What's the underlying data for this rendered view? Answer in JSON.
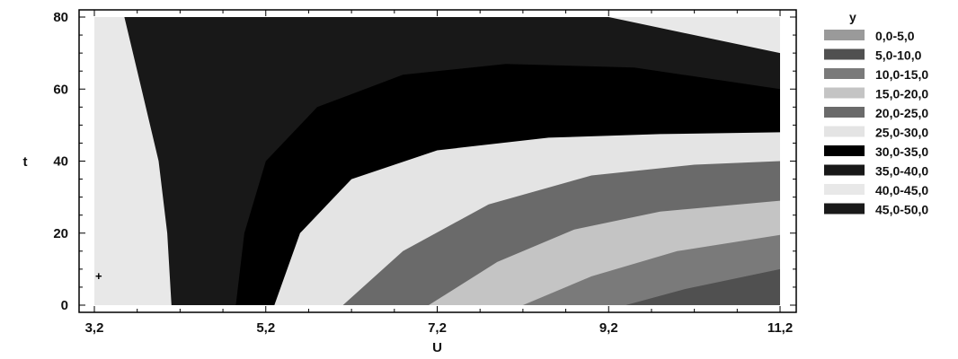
{
  "chart_data": {
    "type": "contour",
    "xlabel": "U",
    "ylabel": "t",
    "xlim": [
      3.2,
      11.2
    ],
    "ylim": [
      0,
      80
    ],
    "x_ticks": [
      "3,2",
      "5,2",
      "7,2",
      "9,2",
      "11,2"
    ],
    "y_ticks": [
      "0",
      "20",
      "40",
      "60",
      "80"
    ],
    "legend_title": "y",
    "legend_position": "right",
    "levels": [
      {
        "label": "0,0-5,0",
        "min": 0,
        "max": 5,
        "color": "#9a9a9a"
      },
      {
        "label": "5,0-10,0",
        "min": 5,
        "max": 10,
        "color": "#505050"
      },
      {
        "label": "10,0-15,0",
        "min": 10,
        "max": 15,
        "color": "#7a7a7a"
      },
      {
        "label": "15,0-20,0",
        "min": 15,
        "max": 20,
        "color": "#c4c4c4"
      },
      {
        "label": "20,0-25,0",
        "min": 20,
        "max": 25,
        "color": "#6a6a6a"
      },
      {
        "label": "25,0-30,0",
        "min": 25,
        "max": 30,
        "color": "#e4e4e4"
      },
      {
        "label": "30,0-35,0",
        "min": 30,
        "max": 35,
        "color": "#000000"
      },
      {
        "label": "35,0-40,0",
        "min": 35,
        "max": 40,
        "color": "#181818"
      },
      {
        "label": "40,0-45,0",
        "min": 40,
        "max": 45,
        "color": "#e8e8e8"
      },
      {
        "label": "45,0-50,0",
        "min": 45,
        "max": 50,
        "color": "#1a1a1a"
      }
    ],
    "regions": [
      {
        "level": "40,0-45,0",
        "points": [
          [
            3.2,
            0
          ],
          [
            11.2,
            0
          ],
          [
            11.2,
            80
          ],
          [
            3.2,
            80
          ]
        ]
      },
      {
        "level": "35,0-40,0",
        "points": [
          [
            3.55,
            80
          ],
          [
            3.75,
            60
          ],
          [
            3.95,
            40
          ],
          [
            4.05,
            20
          ],
          [
            4.1,
            0
          ],
          [
            11.2,
            0
          ],
          [
            11.2,
            70
          ],
          [
            10.0,
            76
          ],
          [
            9.2,
            80
          ]
        ]
      },
      {
        "level": "30,0-35,0",
        "points": [
          [
            4.85,
            0
          ],
          [
            4.95,
            20
          ],
          [
            5.2,
            40
          ],
          [
            5.8,
            55
          ],
          [
            6.8,
            64
          ],
          [
            8.0,
            67
          ],
          [
            9.5,
            66
          ],
          [
            11.2,
            60
          ],
          [
            11.2,
            0
          ]
        ]
      },
      {
        "level": "25,0-30,0",
        "points": [
          [
            5.3,
            0
          ],
          [
            5.6,
            20
          ],
          [
            6.2,
            35
          ],
          [
            7.2,
            43
          ],
          [
            8.5,
            46.5
          ],
          [
            9.8,
            47.5
          ],
          [
            11.2,
            48
          ],
          [
            11.2,
            0
          ]
        ]
      },
      {
        "level": "20,0-25,0",
        "points": [
          [
            6.1,
            0
          ],
          [
            6.8,
            15
          ],
          [
            7.8,
            28
          ],
          [
            9.0,
            36
          ],
          [
            10.2,
            39
          ],
          [
            11.2,
            40
          ],
          [
            11.2,
            0
          ]
        ]
      },
      {
        "level": "15,0-20,0",
        "points": [
          [
            7.1,
            0
          ],
          [
            7.9,
            12
          ],
          [
            8.8,
            21
          ],
          [
            9.8,
            26
          ],
          [
            11.2,
            29
          ],
          [
            11.2,
            0
          ]
        ]
      },
      {
        "level": "10,0-15,0",
        "points": [
          [
            8.2,
            0
          ],
          [
            9.0,
            8
          ],
          [
            10.0,
            15
          ],
          [
            11.2,
            19.5
          ],
          [
            11.2,
            0
          ]
        ]
      },
      {
        "level": "5,0-10,0",
        "points": [
          [
            9.4,
            0
          ],
          [
            10.1,
            4.5
          ],
          [
            11.2,
            10
          ],
          [
            11.2,
            0
          ]
        ]
      }
    ],
    "markers": [
      {
        "x": 3.25,
        "y": 8,
        "symbol": "+"
      }
    ]
  }
}
